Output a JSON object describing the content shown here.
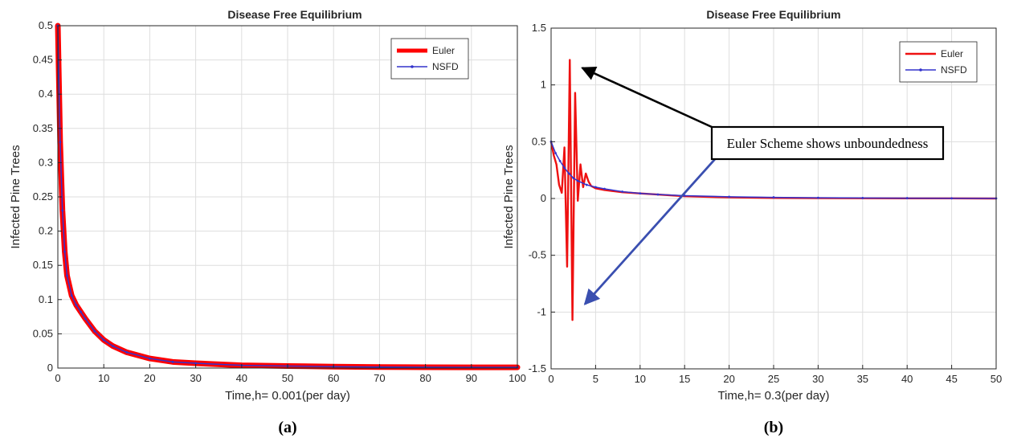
{
  "chart_data": [
    {
      "panel_label": "(a)",
      "type": "line",
      "title": "Disease Free Equilibrium",
      "xlabel": "Time,h= 0.001(per day)",
      "ylabel": "Infected Pine Trees",
      "xlim": [
        0,
        100
      ],
      "ylim": [
        0,
        0.5
      ],
      "xticks": [
        0,
        10,
        20,
        30,
        40,
        50,
        60,
        70,
        80,
        90,
        100
      ],
      "yticks": [
        0,
        0.05,
        0.1,
        0.15,
        0.2,
        0.25,
        0.3,
        0.35,
        0.4,
        0.45,
        0.5
      ],
      "grid": true,
      "legend_position": "top-right",
      "series": [
        {
          "name": "Euler",
          "color": "#ff0000",
          "style": "thick-line",
          "x": [
            0,
            0.5,
            1,
            1.5,
            2,
            3,
            4,
            5,
            6,
            8,
            10,
            12,
            15,
            20,
            25,
            30,
            40,
            50,
            60,
            70,
            80,
            90,
            100
          ],
          "y": [
            0.5,
            0.33,
            0.23,
            0.17,
            0.135,
            0.106,
            0.092,
            0.082,
            0.072,
            0.054,
            0.041,
            0.032,
            0.023,
            0.014,
            0.009,
            0.007,
            0.004,
            0.003,
            0.002,
            0.0015,
            0.0012,
            0.001,
            0.001
          ]
        },
        {
          "name": "NSFD",
          "color": "#3333cc",
          "style": "line-with-dots",
          "x": [
            0,
            0.5,
            1,
            1.5,
            2,
            3,
            4,
            5,
            6,
            8,
            10,
            12,
            15,
            20,
            25,
            30,
            40,
            50,
            60,
            70,
            80,
            90,
            100
          ],
          "y": [
            0.5,
            0.33,
            0.23,
            0.17,
            0.135,
            0.106,
            0.092,
            0.082,
            0.072,
            0.054,
            0.041,
            0.032,
            0.023,
            0.014,
            0.009,
            0.007,
            0.004,
            0.003,
            0.002,
            0.0015,
            0.0012,
            0.001,
            0.001
          ]
        }
      ]
    },
    {
      "panel_label": "(b)",
      "type": "line",
      "title": "Disease Free Equilibrium",
      "xlabel": "Time,h= 0.3(per day)",
      "ylabel": "Infected Pine Trees",
      "xlim": [
        0,
        50
      ],
      "ylim": [
        -1.5,
        1.5
      ],
      "xticks": [
        0,
        5,
        10,
        15,
        20,
        25,
        30,
        35,
        40,
        45,
        50
      ],
      "yticks": [
        -1.5,
        -1,
        -0.5,
        0,
        0.5,
        1,
        1.5
      ],
      "grid": true,
      "legend_position": "top-right",
      "annotation": {
        "text": "Euler Scheme shows unboundedness",
        "arrow_targets": [
          [
            3.5,
            1.15
          ],
          [
            3.8,
            -0.93
          ]
        ]
      },
      "series": [
        {
          "name": "Euler",
          "color": "#ee1111",
          "style": "line",
          "x": [
            0,
            0.3,
            0.6,
            0.9,
            1.2,
            1.5,
            1.8,
            2.1,
            2.4,
            2.7,
            3.0,
            3.3,
            3.6,
            3.9,
            4.2,
            4.5,
            5,
            6,
            7,
            8,
            10,
            12,
            15,
            20,
            25,
            30,
            35,
            40,
            45,
            50
          ],
          "y": [
            0.5,
            0.38,
            0.3,
            0.12,
            0.05,
            0.45,
            -0.6,
            1.22,
            -1.07,
            0.93,
            -0.02,
            0.3,
            0.1,
            0.22,
            0.15,
            0.11,
            0.09,
            0.075,
            0.065,
            0.055,
            0.045,
            0.035,
            0.02,
            0.01,
            0.005,
            0.003,
            0.002,
            0.001,
            0.001,
            0.0
          ]
        },
        {
          "name": "NSFD",
          "color": "#3333cc",
          "style": "line-with-dots",
          "x": [
            0,
            0.5,
            1,
            1.5,
            2,
            2.5,
            3,
            4,
            5,
            6,
            8,
            10,
            12,
            15,
            20,
            25,
            30,
            35,
            40,
            45,
            50
          ],
          "y": [
            0.5,
            0.4,
            0.33,
            0.27,
            0.22,
            0.18,
            0.155,
            0.12,
            0.1,
            0.085,
            0.06,
            0.045,
            0.035,
            0.025,
            0.015,
            0.01,
            0.006,
            0.004,
            0.003,
            0.002,
            0.001
          ]
        }
      ]
    }
  ]
}
